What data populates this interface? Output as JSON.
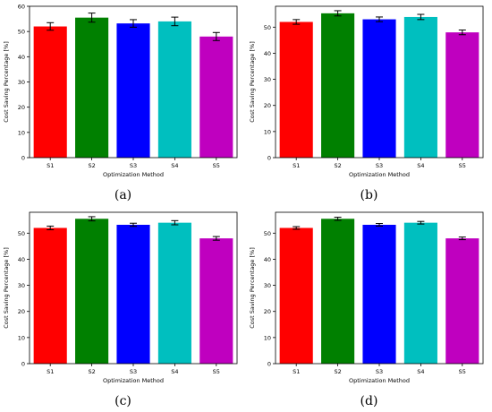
{
  "chart_data": [
    {
      "panel_label": "(a)",
      "type": "bar",
      "xlabel": "Optimization Method",
      "ylabel": "Cost Saving Percentage [%]",
      "categories": [
        "S1",
        "S2",
        "S3",
        "S4",
        "S5"
      ],
      "values": [
        52,
        55.5,
        53.2,
        54,
        48
      ],
      "errors": [
        1.5,
        1.8,
        1.5,
        1.7,
        1.6
      ],
      "colors": [
        "#ff0000",
        "#008000",
        "#0000ff",
        "#00bfbf",
        "#bf00bf"
      ],
      "ylim": [
        0,
        60
      ],
      "yticks": [
        0,
        10,
        20,
        30,
        40,
        50,
        60
      ]
    },
    {
      "panel_label": "(b)",
      "type": "bar",
      "xlabel": "Optimization Method",
      "ylabel": "Cost Saving Percentage [%]",
      "categories": [
        "S1",
        "S2",
        "S3",
        "S4",
        "S5"
      ],
      "values": [
        52,
        55.3,
        53,
        53.9,
        48
      ],
      "errors": [
        0.9,
        1.0,
        0.9,
        1.0,
        0.9
      ],
      "colors": [
        "#ff0000",
        "#008000",
        "#0000ff",
        "#00bfbf",
        "#bf00bf"
      ],
      "ylim": [
        0,
        58
      ],
      "yticks": [
        0,
        10,
        20,
        30,
        40,
        50
      ]
    },
    {
      "panel_label": "(c)",
      "type": "bar",
      "xlabel": "Optimization Method",
      "ylabel": "Cost Saving Percentage [%]",
      "categories": [
        "S1",
        "S2",
        "S3",
        "S4",
        "S5"
      ],
      "values": [
        52,
        55.5,
        53.2,
        54,
        48
      ],
      "errors": [
        0.7,
        0.8,
        0.6,
        0.8,
        0.7
      ],
      "colors": [
        "#ff0000",
        "#008000",
        "#0000ff",
        "#00bfbf",
        "#bf00bf"
      ],
      "ylim": [
        0,
        58
      ],
      "yticks": [
        0,
        10,
        20,
        30,
        40,
        50
      ]
    },
    {
      "panel_label": "(d)",
      "type": "bar",
      "xlabel": "Optimization Method",
      "ylabel": "Cost Saving Percentage [%]",
      "categories": [
        "S1",
        "S2",
        "S3",
        "S4",
        "S5"
      ],
      "values": [
        52,
        55.5,
        53.2,
        54,
        48
      ],
      "errors": [
        0.5,
        0.6,
        0.5,
        0.5,
        0.5
      ],
      "colors": [
        "#ff0000",
        "#008000",
        "#0000ff",
        "#00bfbf",
        "#bf00bf"
      ],
      "ylim": [
        0,
        58
      ],
      "yticks": [
        0,
        10,
        20,
        30,
        40,
        50
      ]
    }
  ]
}
